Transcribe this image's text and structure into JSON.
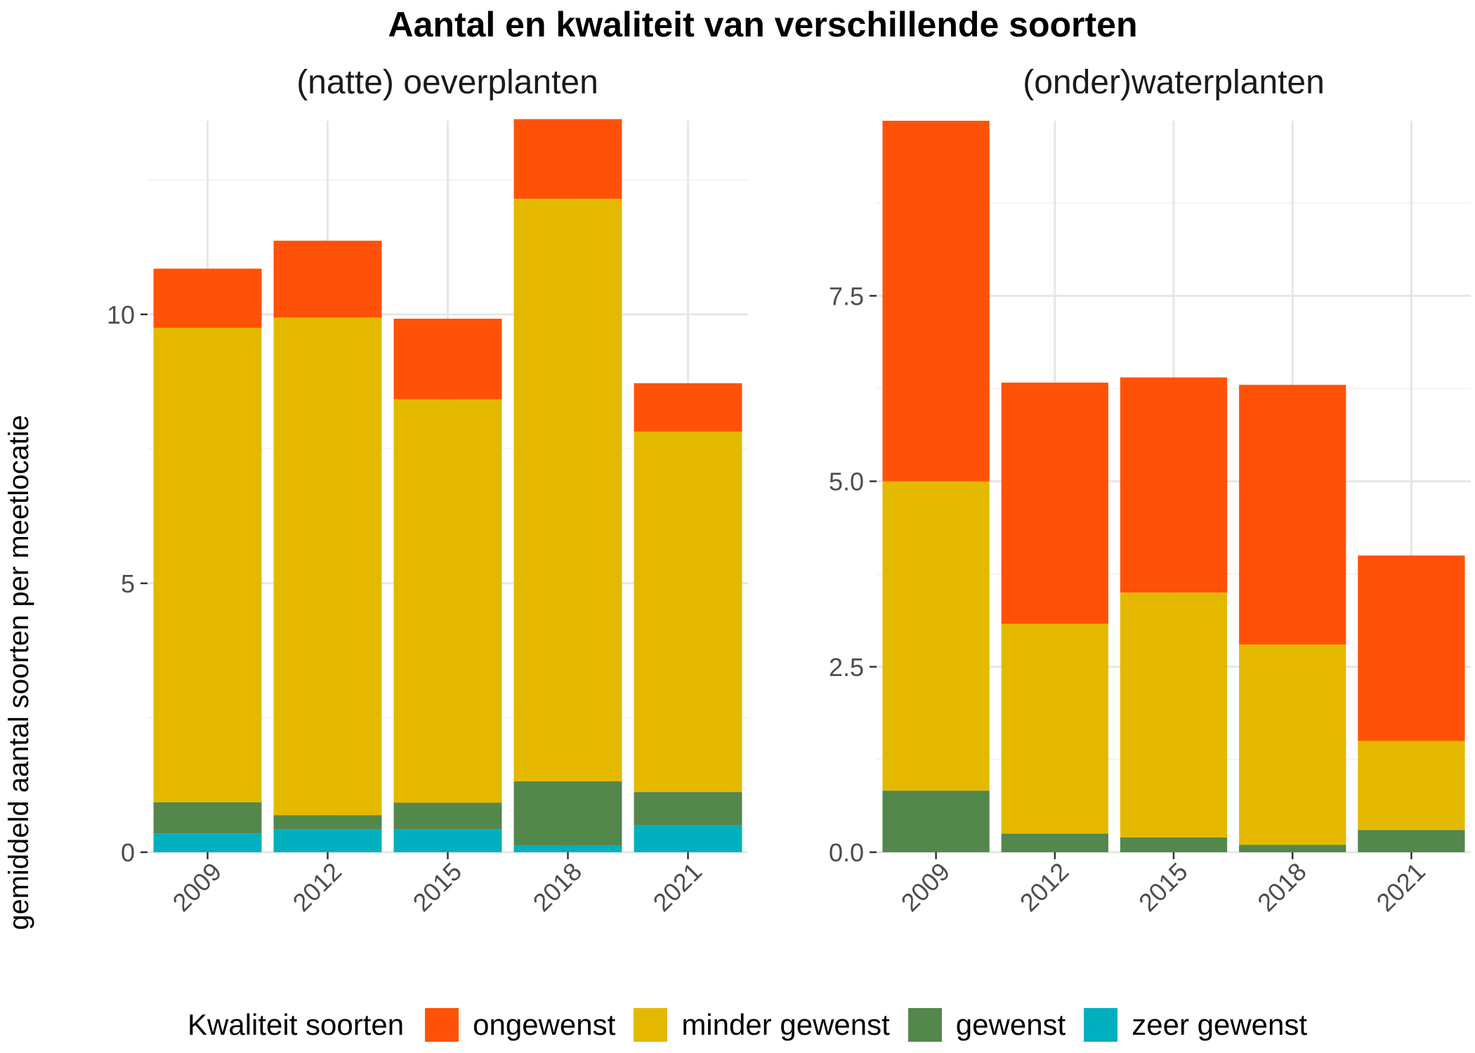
{
  "title": "Aantal en kwaliteit van verschillende soorten",
  "y_axis_label": "gemiddeld aantal soorten per meetlocatie",
  "legend": {
    "title": "Kwaliteit soorten",
    "items": [
      {
        "label": "ongewenst",
        "color": "#FF5208"
      },
      {
        "label": "minder gewenst",
        "color": "#E5B800"
      },
      {
        "label": "gewenst",
        "color": "#53874C"
      },
      {
        "label": "zeer gewenst",
        "color": "#00B0BE"
      }
    ]
  },
  "chart_data": [
    {
      "type": "bar",
      "stacked": true,
      "title": "(natte) oeverplanten",
      "categories": [
        "2009",
        "2012",
        "2015",
        "2018",
        "2021"
      ],
      "ylim": [
        0,
        13.6
      ],
      "yticks": [
        0,
        5,
        10
      ],
      "ytick_labels": [
        "0",
        "5",
        "10"
      ],
      "grid": true,
      "series": [
        {
          "name": "zeer gewenst",
          "color": "#00B0BE",
          "values": [
            0.35,
            0.42,
            0.42,
            0.12,
            0.5
          ]
        },
        {
          "name": "gewenst",
          "color": "#53874C",
          "values": [
            0.58,
            0.27,
            0.5,
            1.2,
            0.62
          ]
        },
        {
          "name": "minder gewenst",
          "color": "#E5B800",
          "values": [
            8.82,
            9.25,
            7.5,
            10.83,
            6.7
          ]
        },
        {
          "name": "ongewenst",
          "color": "#FF5208",
          "values": [
            1.1,
            1.43,
            1.5,
            1.48,
            0.9
          ]
        }
      ]
    },
    {
      "type": "bar",
      "stacked": true,
      "title": "(onder)waterplanten",
      "categories": [
        "2009",
        "2012",
        "2015",
        "2018",
        "2021"
      ],
      "ylim": [
        0,
        9.86
      ],
      "yticks": [
        0,
        2.5,
        5,
        7.5
      ],
      "ytick_labels": [
        "0.0",
        "2.5",
        "5.0",
        "7.5"
      ],
      "grid": true,
      "series": [
        {
          "name": "zeer gewenst",
          "color": "#00B0BE",
          "values": [
            0,
            0,
            0,
            0,
            0
          ]
        },
        {
          "name": "gewenst",
          "color": "#53874C",
          "values": [
            0.83,
            0.25,
            0.2,
            0.1,
            0.3
          ]
        },
        {
          "name": "minder gewenst",
          "color": "#E5B800",
          "values": [
            4.17,
            2.83,
            3.3,
            2.7,
            1.2
          ]
        },
        {
          "name": "ongewenst",
          "color": "#FF5208",
          "values": [
            4.86,
            3.25,
            2.9,
            3.5,
            2.5
          ]
        }
      ]
    }
  ]
}
